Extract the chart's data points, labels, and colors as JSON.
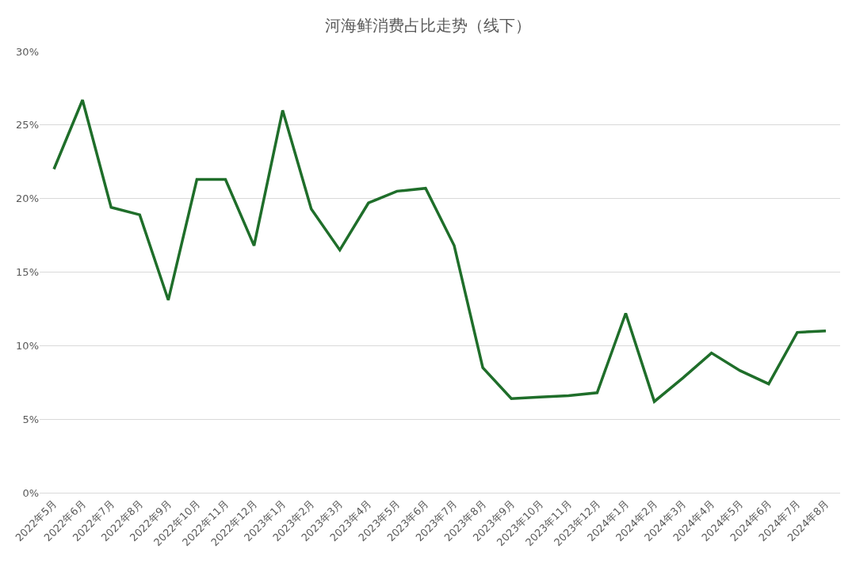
{
  "chart_data": {
    "type": "line",
    "title": "河海鲜消费占比走势（线下）",
    "categories": [
      "2022年5月",
      "2022年6月",
      "2022年7月",
      "2022年8月",
      "2022年9月",
      "2022年10月",
      "2022年11月",
      "2022年12月",
      "2023年1月",
      "2023年2月",
      "2023年3月",
      "2023年4月",
      "2023年5月",
      "2023年6月",
      "2023年7月",
      "2023年8月",
      "2023年9月",
      "2023年10月",
      "2023年11月",
      "2023年12月",
      "2024年1月",
      "2024年2月",
      "2024年3月",
      "2024年4月",
      "2024年5月",
      "2024年6月",
      "2024年7月",
      "2024年8月"
    ],
    "series": [
      {
        "color": "#1f6e2a",
        "values": [
          22.0,
          26.7,
          19.4,
          18.9,
          13.1,
          21.3,
          21.3,
          16.8,
          26.0,
          19.3,
          16.5,
          19.7,
          20.5,
          20.7,
          16.8,
          8.5,
          6.4,
          6.5,
          6.6,
          6.8,
          12.2,
          6.2,
          7.8,
          9.5,
          8.3,
          7.4,
          10.9,
          11.0
        ]
      }
    ],
    "ylim": [
      0,
      30
    ],
    "yticks": [
      {
        "value": 0,
        "label": "0%"
      },
      {
        "value": 5,
        "label": "5%"
      },
      {
        "value": 10,
        "label": "10%"
      },
      {
        "value": 15,
        "label": "15%"
      },
      {
        "value": 20,
        "label": "20%"
      },
      {
        "value": 25,
        "label": "25%"
      },
      {
        "value": 30,
        "label": "30%"
      }
    ],
    "grid": "y",
    "legend": false,
    "marker": "none",
    "line_style": "solid"
  }
}
